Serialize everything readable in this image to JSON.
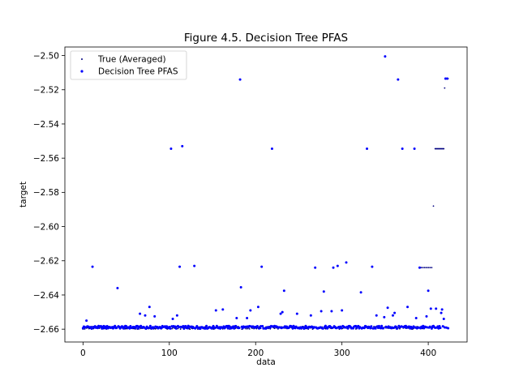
{
  "chart_data": {
    "type": "scatter",
    "title": "Figure 4.5. Decision Tree PFAS",
    "xlabel": "data",
    "ylabel": "target",
    "xlim": [
      -21,
      445
    ],
    "ylim": [
      -2.6675,
      -2.495
    ],
    "xticks": [
      0,
      100,
      200,
      300,
      400
    ],
    "yticks": [
      -2.66,
      -2.64,
      -2.62,
      -2.6,
      -2.58,
      -2.56,
      -2.54,
      -2.52,
      -2.5
    ],
    "ytick_labels": [
      "−2.66",
      "−2.64",
      "−2.62",
      "−2.60",
      "−2.58",
      "−2.56",
      "−2.54",
      "−2.52",
      "−2.50"
    ],
    "legend_position": "top-left",
    "grid": false,
    "baseline_value": -2.6592,
    "x_count": 424,
    "series": [
      {
        "name": "True (Averaged)",
        "color": "#000080",
        "marker_size": 1,
        "outliers": [
          [
            11,
            -2.6235
          ],
          [
            40,
            -2.636
          ],
          [
            102,
            -2.5545
          ],
          [
            112,
            -2.6235
          ],
          [
            115,
            -2.553
          ],
          [
            129,
            -2.623
          ],
          [
            182,
            -2.514
          ],
          [
            183,
            -2.6355
          ],
          [
            207,
            -2.6235
          ],
          [
            219,
            -2.5545
          ],
          [
            233,
            -2.6375
          ],
          [
            269,
            -2.624
          ],
          [
            279,
            -2.638
          ],
          [
            290,
            -2.624
          ],
          [
            295,
            -2.623
          ],
          [
            305,
            -2.621
          ],
          [
            322,
            -2.6385
          ],
          [
            329,
            -2.5545
          ],
          [
            335,
            -2.6235
          ],
          [
            350,
            -2.5005
          ],
          [
            365,
            -2.514
          ],
          [
            370,
            -2.5545
          ],
          [
            384,
            -2.5545
          ],
          [
            390,
            -2.624
          ],
          [
            392,
            -2.624
          ],
          [
            394,
            -2.624
          ],
          [
            396,
            -2.624
          ],
          [
            398,
            -2.624
          ],
          [
            400,
            -2.624
          ],
          [
            402,
            -2.624
          ],
          [
            404,
            -2.624
          ],
          [
            406,
            -2.588
          ],
          [
            408,
            -2.5545
          ],
          [
            409,
            -2.5545
          ],
          [
            410,
            -2.5545
          ],
          [
            411,
            -2.5545
          ],
          [
            412,
            -2.5545
          ],
          [
            413,
            -2.5545
          ],
          [
            414,
            -2.5545
          ],
          [
            415,
            -2.5545
          ],
          [
            416,
            -2.5545
          ],
          [
            417,
            -2.5545
          ],
          [
            418,
            -2.5545
          ],
          [
            419,
            -2.519
          ],
          [
            420,
            -2.5135
          ],
          [
            421,
            -2.5135
          ],
          [
            422,
            -2.5135
          ],
          [
            423,
            -2.5135
          ]
        ]
      },
      {
        "name": "Decision Tree PFAS",
        "color": "#0000ff",
        "marker_size": 2,
        "outliers": [
          [
            11,
            -2.6235
          ],
          [
            40,
            -2.636
          ],
          [
            102,
            -2.5545
          ],
          [
            112,
            -2.6235
          ],
          [
            115,
            -2.553
          ],
          [
            129,
            -2.623
          ],
          [
            182,
            -2.514
          ],
          [
            183,
            -2.6355
          ],
          [
            207,
            -2.6235
          ],
          [
            219,
            -2.5545
          ],
          [
            233,
            -2.6375
          ],
          [
            269,
            -2.624
          ],
          [
            279,
            -2.638
          ],
          [
            290,
            -2.624
          ],
          [
            295,
            -2.623
          ],
          [
            305,
            -2.621
          ],
          [
            322,
            -2.6385
          ],
          [
            329,
            -2.5545
          ],
          [
            335,
            -2.6235
          ],
          [
            350,
            -2.5005
          ],
          [
            365,
            -2.514
          ],
          [
            370,
            -2.5545
          ],
          [
            384,
            -2.5545
          ],
          [
            390,
            -2.624
          ],
          [
            400,
            -2.6375
          ],
          [
            403,
            -2.648
          ],
          [
            409,
            -2.648
          ],
          [
            418,
            -2.654
          ],
          [
            420,
            -2.5135
          ],
          [
            422,
            -2.5135
          ],
          [
            4,
            -2.655
          ],
          [
            66,
            -2.651
          ],
          [
            72,
            -2.652
          ],
          [
            77,
            -2.647
          ],
          [
            83,
            -2.6525
          ],
          [
            104,
            -2.654
          ],
          [
            109,
            -2.652
          ],
          [
            154,
            -2.649
          ],
          [
            162,
            -2.6485
          ],
          [
            178,
            -2.6535
          ],
          [
            190,
            -2.6535
          ],
          [
            194,
            -2.649
          ],
          [
            203,
            -2.647
          ],
          [
            229,
            -2.651
          ],
          [
            231,
            -2.65
          ],
          [
            248,
            -2.651
          ],
          [
            264,
            -2.652
          ],
          [
            276,
            -2.6495
          ],
          [
            288,
            -2.6495
          ],
          [
            300,
            -2.649
          ],
          [
            340,
            -2.652
          ],
          [
            349,
            -2.653
          ],
          [
            353,
            -2.6475
          ],
          [
            359,
            -2.652
          ],
          [
            361,
            -2.6505
          ],
          [
            376,
            -2.647
          ],
          [
            386,
            -2.6535
          ],
          [
            398,
            -2.6525
          ],
          [
            415,
            -2.6505
          ],
          [
            416,
            -2.6485
          ]
        ]
      }
    ]
  }
}
